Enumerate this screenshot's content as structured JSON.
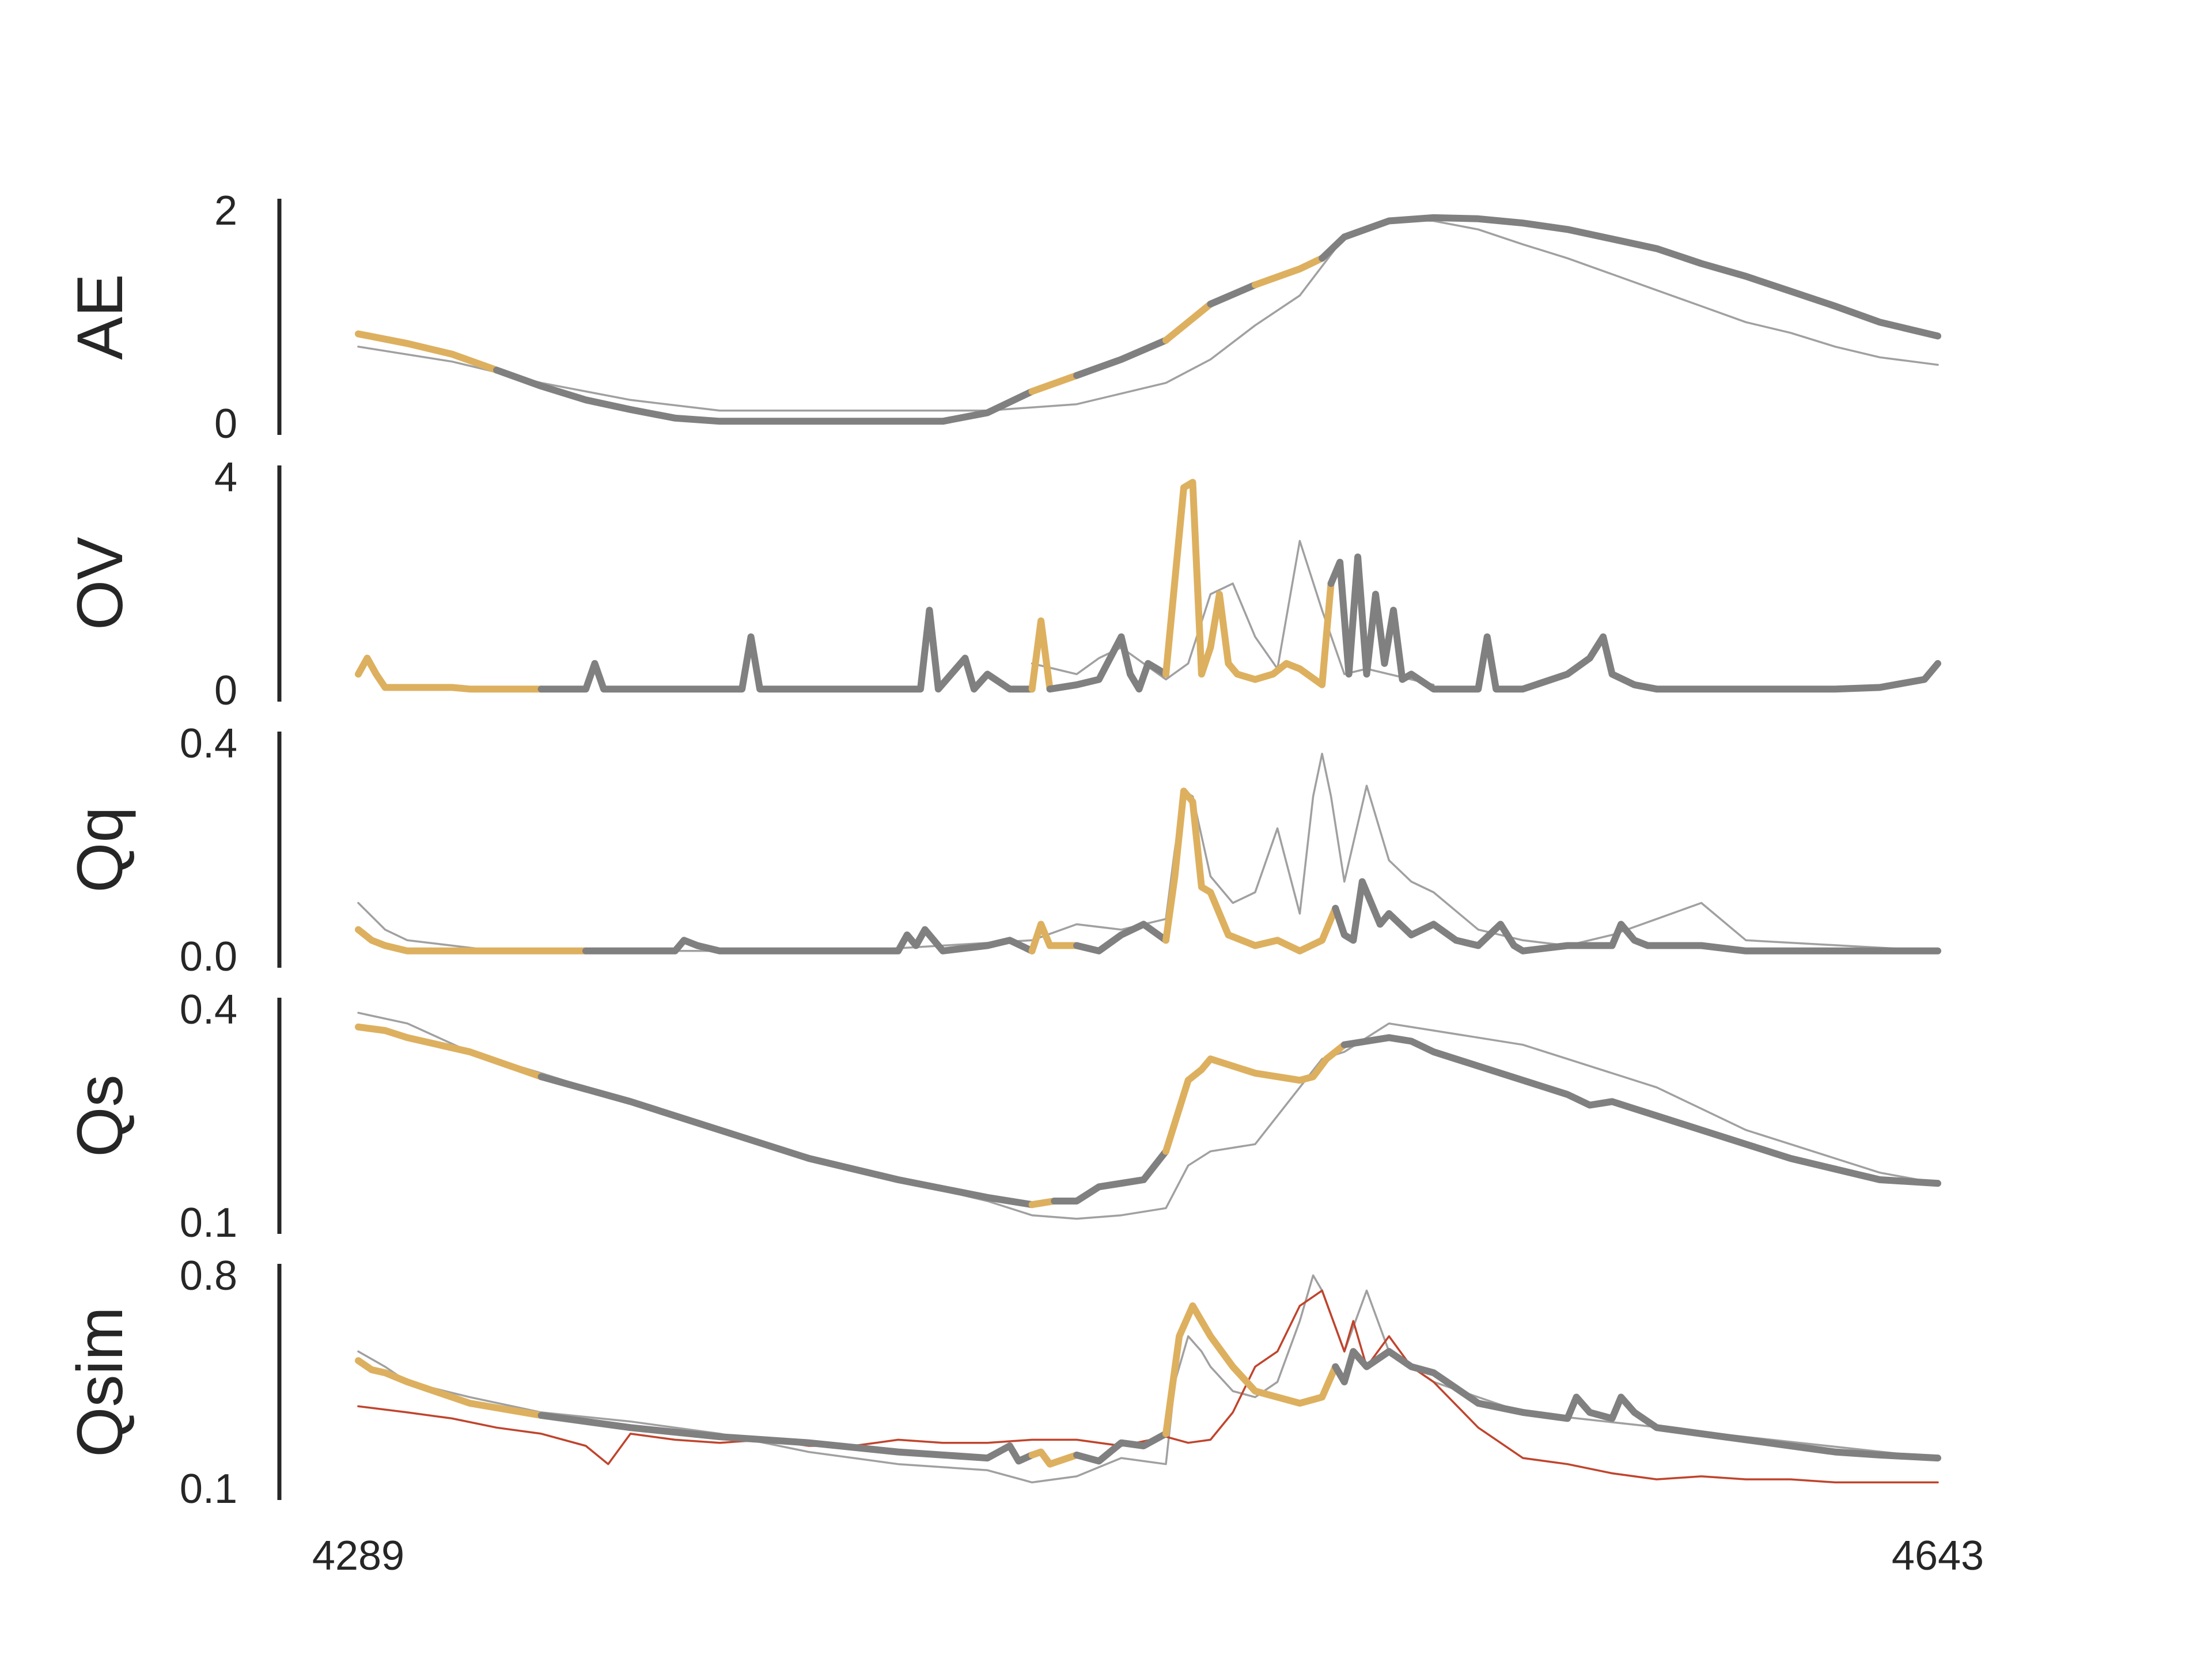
{
  "chart_data": {
    "type": "line",
    "x_ticks": [
      "4289",
      "4643"
    ],
    "xlim": [
      4289,
      4643
    ],
    "colors": {
      "thick_gray": "#808080",
      "thick_gold": "#ddb05f",
      "thin_gray": "#a0a0a0",
      "thin_red": "#c0442c"
    },
    "panels": [
      {
        "name": "AE",
        "ylim": [
          0,
          2
        ],
        "y_ticks": [
          "0",
          "2"
        ],
        "segments_gold": [
          [
            4289,
            4314
          ],
          [
            4440,
            4444
          ],
          [
            4470,
            4478
          ],
          [
            4482,
            4503
          ]
        ],
        "series_thin": {
          "x": [
            4289,
            4310,
            4330,
            4350,
            4370,
            4390,
            4410,
            4430,
            4450,
            4470,
            4480,
            4490,
            4500,
            4510,
            4520,
            4530,
            4540,
            4550,
            4560,
            4570,
            4580,
            4590,
            4600,
            4610,
            4620,
            4630,
            4643
          ],
          "y": [
            0.72,
            0.58,
            0.38,
            0.22,
            0.12,
            0.12,
            0.12,
            0.12,
            0.18,
            0.38,
            0.6,
            0.92,
            1.2,
            1.75,
            1.92,
            1.9,
            1.82,
            1.68,
            1.55,
            1.4,
            1.25,
            1.1,
            0.95,
            0.85,
            0.72,
            0.62,
            0.55
          ]
        },
        "series_thick": {
          "x": [
            4289,
            4300,
            4310,
            4320,
            4330,
            4340,
            4350,
            4360,
            4370,
            4380,
            4390,
            4400,
            4410,
            4420,
            4430,
            4440,
            4450,
            4460,
            4470,
            4480,
            4490,
            4500,
            4505,
            4510,
            4520,
            4530,
            4540,
            4550,
            4560,
            4570,
            4580,
            4590,
            4600,
            4610,
            4620,
            4630,
            4643
          ],
          "y": [
            0.84,
            0.75,
            0.65,
            0.5,
            0.35,
            0.22,
            0.13,
            0.05,
            0.02,
            0.02,
            0.02,
            0.02,
            0.02,
            0.02,
            0.1,
            0.3,
            0.45,
            0.6,
            0.78,
            1.12,
            1.3,
            1.45,
            1.55,
            1.75,
            1.9,
            1.93,
            1.92,
            1.88,
            1.82,
            1.73,
            1.64,
            1.5,
            1.38,
            1.24,
            1.1,
            0.95,
            0.82
          ]
        }
      },
      {
        "name": "OV",
        "ylim": [
          0,
          4
        ],
        "y_ticks": [
          "0",
          "4"
        ],
        "segments_gold": [
          [
            4289,
            4314
          ],
          [
            4440,
            4443
          ],
          [
            4470,
            4506
          ]
        ],
        "series_thin": {
          "x": [
            4440,
            4445,
            4450,
            4455,
            4460,
            4465,
            4470,
            4475,
            4480,
            4485,
            4490,
            4495,
            4500,
            4505,
            4510,
            4515,
            4520,
            4525,
            4530
          ],
          "y": [
            0.5,
            0.4,
            0.3,
            0.6,
            0.8,
            0.5,
            0.2,
            0.5,
            1.8,
            2.0,
            1.0,
            0.4,
            2.8,
            1.5,
            0.3,
            0.4,
            0.3,
            0.2,
            0.1
          ]
        },
        "series_thick": {
          "x": [
            4289,
            4291,
            4293,
            4295,
            4300,
            4310,
            4314,
            4330,
            4340,
            4342,
            4344,
            4350,
            4370,
            4375,
            4377,
            4379,
            4390,
            4410,
            4415,
            4417,
            4419,
            4425,
            4427,
            4430,
            4435,
            4440,
            4442,
            4444,
            4450,
            4455,
            4460,
            4462,
            4464,
            4466,
            4470,
            4474,
            4476,
            4478,
            4480,
            4482,
            4484,
            4486,
            4490,
            4494,
            4497,
            4500,
            4505,
            4507,
            4509,
            4511,
            4513,
            4515,
            4517,
            4519,
            4521,
            4523,
            4525,
            4530,
            4540,
            4542,
            4544,
            4550,
            4560,
            4565,
            4568,
            4570,
            4575,
            4580,
            4590,
            4600,
            4610,
            4620,
            4630,
            4640,
            4643
          ],
          "y": [
            0.3,
            0.6,
            0.3,
            0.05,
            0.05,
            0.05,
            0.02,
            0.02,
            0.02,
            0.5,
            0.02,
            0.02,
            0.02,
            0.02,
            1.0,
            0.02,
            0.02,
            0.02,
            0.02,
            1.5,
            0.02,
            0.6,
            0.02,
            0.3,
            0.02,
            0.02,
            1.3,
            0.02,
            0.1,
            0.2,
            1.0,
            0.3,
            0.02,
            0.5,
            0.3,
            3.8,
            3.9,
            0.3,
            0.8,
            1.8,
            0.5,
            0.3,
            0.2,
            0.3,
            0.5,
            0.4,
            0.1,
            2.0,
            2.4,
            0.3,
            2.5,
            0.3,
            1.8,
            0.5,
            1.5,
            0.2,
            0.3,
            0.02,
            0.02,
            1.0,
            0.02,
            0.02,
            0.3,
            0.6,
            1.0,
            0.3,
            0.1,
            0.02,
            0.02,
            0.02,
            0.02,
            0.02,
            0.05,
            0.2,
            0.5
          ]
        }
      },
      {
        "name": "Qq",
        "ylim": [
          0.0,
          0.4
        ],
        "y_ticks": [
          "0.0",
          "0.4"
        ],
        "segments_gold": [
          [
            4289,
            4314
          ],
          [
            4440,
            4444
          ],
          [
            4470,
            4506
          ]
        ],
        "series_thin": {
          "x": [
            4289,
            4295,
            4300,
            4310,
            4320,
            4400,
            4420,
            4440,
            4450,
            4460,
            4470,
            4472,
            4474,
            4476,
            4480,
            4485,
            4490,
            4495,
            4500,
            4503,
            4505,
            4507,
            4510,
            4515,
            4520,
            4525,
            4530,
            4540,
            4550,
            4560,
            4570,
            4580,
            4590,
            4600,
            4643
          ],
          "y": [
            0.1,
            0.05,
            0.03,
            0.02,
            0.01,
            0.01,
            0.02,
            0.03,
            0.06,
            0.05,
            0.07,
            0.2,
            0.31,
            0.3,
            0.15,
            0.1,
            0.12,
            0.24,
            0.08,
            0.3,
            0.38,
            0.3,
            0.14,
            0.32,
            0.18,
            0.14,
            0.12,
            0.05,
            0.03,
            0.02,
            0.04,
            0.07,
            0.1,
            0.03,
            0.01
          ]
        },
        "series_thick": {
          "x": [
            4289,
            4292,
            4295,
            4300,
            4310,
            4314,
            4340,
            4360,
            4362,
            4365,
            4370,
            4400,
            4410,
            4412,
            4414,
            4416,
            4420,
            4430,
            4435,
            4440,
            4442,
            4444,
            4450,
            4455,
            4460,
            4465,
            4470,
            4472,
            4474,
            4476,
            4478,
            4480,
            4484,
            4490,
            4495,
            4500,
            4505,
            4508,
            4510,
            4512,
            4514,
            4518,
            4520,
            4525,
            4530,
            4535,
            4540,
            4545,
            4548,
            4550,
            4560,
            4570,
            4572,
            4575,
            4578,
            4580,
            4590,
            4600,
            4643
          ],
          "y": [
            0.05,
            0.03,
            0.02,
            0.01,
            0.01,
            0.01,
            0.01,
            0.01,
            0.03,
            0.02,
            0.01,
            0.01,
            0.01,
            0.04,
            0.02,
            0.05,
            0.01,
            0.02,
            0.03,
            0.01,
            0.06,
            0.02,
            0.02,
            0.01,
            0.04,
            0.06,
            0.03,
            0.15,
            0.31,
            0.29,
            0.13,
            0.12,
            0.04,
            0.02,
            0.03,
            0.01,
            0.03,
            0.09,
            0.04,
            0.03,
            0.14,
            0.06,
            0.08,
            0.04,
            0.06,
            0.03,
            0.02,
            0.06,
            0.02,
            0.01,
            0.02,
            0.02,
            0.06,
            0.03,
            0.02,
            0.02,
            0.02,
            0.01,
            0.01
          ]
        }
      },
      {
        "name": "Qs",
        "ylim": [
          0.1,
          0.4
        ],
        "y_ticks": [
          "0.1",
          "0.4"
        ],
        "segments_gold": [
          [
            4289,
            4314
          ],
          [
            4440,
            4444
          ],
          [
            4470,
            4506
          ]
        ],
        "series_thin": {
          "x": [
            4289,
            4300,
            4314,
            4330,
            4350,
            4370,
            4390,
            4410,
            4430,
            4440,
            4450,
            4460,
            4470,
            4475,
            4480,
            4490,
            4500,
            4505,
            4510,
            4520,
            4530,
            4540,
            4550,
            4560,
            4570,
            4580,
            4590,
            4600,
            4610,
            4620,
            4630,
            4643
          ],
          "y": [
            0.395,
            0.38,
            0.34,
            0.31,
            0.27,
            0.23,
            0.19,
            0.16,
            0.13,
            0.11,
            0.105,
            0.11,
            0.12,
            0.18,
            0.2,
            0.21,
            0.29,
            0.33,
            0.34,
            0.38,
            0.37,
            0.36,
            0.35,
            0.33,
            0.31,
            0.29,
            0.26,
            0.23,
            0.21,
            0.19,
            0.17,
            0.155
          ]
        },
        "series_thick": {
          "x": [
            4289,
            4295,
            4300,
            4314,
            4330,
            4350,
            4370,
            4390,
            4410,
            4430,
            4440,
            4445,
            4450,
            4455,
            4460,
            4465,
            4470,
            4475,
            4478,
            4480,
            4485,
            4490,
            4500,
            4503,
            4506,
            4510,
            4515,
            4520,
            4525,
            4530,
            4540,
            4550,
            4560,
            4565,
            4570,
            4575,
            4580,
            4590,
            4600,
            4610,
            4620,
            4630,
            4643
          ],
          "y": [
            0.375,
            0.37,
            0.36,
            0.34,
            0.305,
            0.27,
            0.23,
            0.19,
            0.16,
            0.135,
            0.125,
            0.13,
            0.13,
            0.15,
            0.155,
            0.16,
            0.2,
            0.3,
            0.315,
            0.33,
            0.32,
            0.31,
            0.3,
            0.305,
            0.33,
            0.35,
            0.355,
            0.36,
            0.355,
            0.34,
            0.32,
            0.3,
            0.28,
            0.265,
            0.27,
            0.26,
            0.25,
            0.23,
            0.21,
            0.19,
            0.175,
            0.16,
            0.155
          ]
        }
      },
      {
        "name": "Qsim",
        "ylim": [
          0.1,
          0.8
        ],
        "y_ticks": [
          "0.1",
          "0.8"
        ],
        "segments_gold": [
          [
            4289,
            4314
          ],
          [
            4440,
            4444
          ],
          [
            4470,
            4506
          ]
        ],
        "series_thin": {
          "x": [
            4289,
            4295,
            4300,
            4314,
            4330,
            4350,
            4370,
            4390,
            4410,
            4430,
            4440,
            4450,
            4460,
            4470,
            4472,
            4475,
            4478,
            4480,
            4485,
            4490,
            4495,
            4500,
            4503,
            4505,
            4510,
            4515,
            4520,
            4525,
            4530,
            4550,
            4643
          ],
          "y": [
            0.55,
            0.5,
            0.45,
            0.4,
            0.35,
            0.32,
            0.28,
            0.22,
            0.18,
            0.16,
            0.12,
            0.14,
            0.2,
            0.18,
            0.45,
            0.6,
            0.55,
            0.5,
            0.42,
            0.4,
            0.45,
            0.65,
            0.8,
            0.75,
            0.55,
            0.75,
            0.55,
            0.5,
            0.45,
            0.35,
            0.2
          ]
        },
        "series_red": {
          "x": [
            4289,
            4300,
            4310,
            4320,
            4330,
            4340,
            4345,
            4350,
            4360,
            4370,
            4380,
            4390,
            4400,
            4410,
            4420,
            4430,
            4440,
            4450,
            4460,
            4470,
            4475,
            4480,
            4485,
            4490,
            4495,
            4500,
            4505,
            4510,
            4512,
            4515,
            4520,
            4525,
            4530,
            4540,
            4550,
            4560,
            4570,
            4580,
            4590,
            4600,
            4610,
            4620,
            4630,
            4643
          ],
          "y": [
            0.37,
            0.35,
            0.33,
            0.3,
            0.28,
            0.24,
            0.18,
            0.28,
            0.26,
            0.25,
            0.26,
            0.24,
            0.24,
            0.26,
            0.25,
            0.25,
            0.26,
            0.26,
            0.24,
            0.27,
            0.25,
            0.26,
            0.35,
            0.5,
            0.55,
            0.7,
            0.75,
            0.55,
            0.65,
            0.5,
            0.6,
            0.5,
            0.45,
            0.3,
            0.2,
            0.18,
            0.15,
            0.13,
            0.14,
            0.13,
            0.13,
            0.12,
            0.12,
            0.12
          ]
        },
        "series_thick": {
          "x": [
            4289,
            4292,
            4295,
            4300,
            4314,
            4330,
            4350,
            4370,
            4390,
            4410,
            4430,
            4435,
            4437,
            4440,
            4442,
            4444,
            4450,
            4455,
            4460,
            4465,
            4470,
            4473,
            4476,
            4478,
            4480,
            4485,
            4490,
            4500,
            4505,
            4508,
            4510,
            4512,
            4515,
            4520,
            4525,
            4530,
            4540,
            4550,
            4560,
            4562,
            4565,
            4570,
            4572,
            4575,
            4580,
            4590,
            4600,
            4610,
            4620,
            4630,
            4643
          ],
          "y": [
            0.52,
            0.49,
            0.48,
            0.45,
            0.38,
            0.34,
            0.3,
            0.27,
            0.25,
            0.22,
            0.2,
            0.24,
            0.19,
            0.21,
            0.22,
            0.18,
            0.21,
            0.19,
            0.25,
            0.24,
            0.28,
            0.6,
            0.7,
            0.65,
            0.6,
            0.5,
            0.42,
            0.38,
            0.4,
            0.5,
            0.45,
            0.55,
            0.5,
            0.55,
            0.5,
            0.48,
            0.38,
            0.35,
            0.33,
            0.4,
            0.35,
            0.33,
            0.4,
            0.35,
            0.3,
            0.28,
            0.26,
            0.24,
            0.22,
            0.21,
            0.2
          ]
        }
      }
    ]
  }
}
